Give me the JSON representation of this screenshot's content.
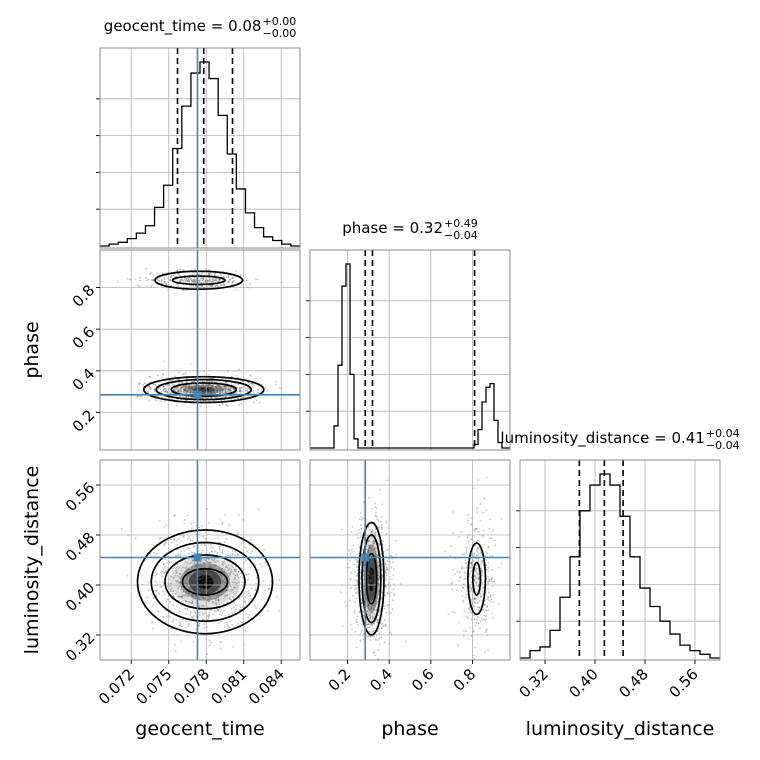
{
  "chart_data": {
    "type": "corner",
    "colors": {
      "line": "#000000",
      "truth": "#4682b4",
      "grid": "#b0b0b0",
      "frame": "#888888"
    },
    "parameters": [
      {
        "name": "geocent_time",
        "label": "geocent_time",
        "title": {
          "text": "geocent_time = 0.08",
          "upper": "+0.00",
          "lower": "−0.00"
        },
        "range": [
          0.0695,
          0.0855
        ],
        "ticks": [
          0.072,
          0.075,
          0.078,
          0.081,
          0.084
        ],
        "tick_labels": [
          "0.072",
          "0.075",
          "0.078",
          "0.081",
          "0.084"
        ],
        "truth": 0.0773,
        "quantiles": [
          0.0757,
          0.0778,
          0.0801
        ],
        "hist_counts": [
          0,
          1,
          2,
          4,
          7,
          11,
          21,
          33,
          53,
          76,
          94,
          100,
          91,
          71,
          50,
          31,
          18,
          10,
          5,
          3,
          1,
          0
        ],
        "hist_grid": [
          0.2,
          0.4,
          0.6,
          0.8
        ]
      },
      {
        "name": "phase",
        "label": "phase",
        "title": {
          "text": "phase = 0.32",
          "upper": "+0.49",
          "lower": "−0.04"
        },
        "range": [
          0.02,
          0.98
        ],
        "ticks": [
          0.2,
          0.4,
          0.6,
          0.8
        ],
        "tick_labels": [
          "0.2",
          "0.4",
          "0.6",
          "0.8"
        ],
        "truth": 0.285,
        "quantiles": [
          0.285,
          0.32,
          0.81
        ],
        "hist_counts": [
          0,
          0,
          0,
          0,
          0,
          0,
          12,
          45,
          88,
          100,
          40,
          5,
          0,
          0,
          0,
          0,
          0,
          0,
          0,
          0,
          0,
          0,
          0,
          0,
          0,
          0,
          0,
          0,
          0,
          0,
          0,
          0,
          0,
          0,
          0,
          0,
          0,
          0,
          0,
          0,
          0,
          2,
          10,
          25,
          33,
          35,
          15,
          3,
          0,
          0
        ],
        "hist_grid": [
          0.2,
          0.4,
          0.6,
          0.8
        ]
      },
      {
        "name": "luminosity_distance",
        "label": "luminosity_distance",
        "title": {
          "text": "luminosity_distance = 0.41",
          "upper": "+0.04",
          "lower": "−0.04"
        },
        "range": [
          0.28,
          0.6
        ],
        "ticks": [
          0.32,
          0.4,
          0.48,
          0.56
        ],
        "tick_labels": [
          "0.32",
          "0.40",
          "0.48",
          "0.56"
        ],
        "truth": 0.444,
        "quantiles": [
          0.375,
          0.415,
          0.445
        ],
        "hist_counts": [
          0,
          4,
          6,
          15,
          33,
          55,
          80,
          94,
          100,
          94,
          77,
          55,
          38,
          28,
          20,
          13,
          7,
          4,
          2,
          0
        ],
        "hist_grid": [
          0.2,
          0.4,
          0.6,
          0.8
        ]
      }
    ],
    "pairs": [
      {
        "x": "geocent_time",
        "y": "phase",
        "truth": [
          0.0773,
          0.285
        ],
        "blobs": [
          {
            "cx": 0.0778,
            "cy": 0.31,
            "sx": 0.0018,
            "sy": 0.028,
            "levels": [
              [
                0.0026,
                0.032
              ],
              [
                0.0038,
                0.048
              ],
              [
                0.0048,
                0.062
              ]
            ],
            "density": [
              [
                0.0025,
                0.03,
                0.12
              ],
              [
                0.0016,
                0.022,
                0.3
              ],
              [
                0.0009,
                0.014,
                0.55
              ],
              [
                0.0005,
                0.009,
                0.85
              ]
            ]
          },
          {
            "cx": 0.0774,
            "cy": 0.835,
            "sx": 0.0018,
            "sy": 0.02,
            "levels": [
              [
                0.0021,
                0.02
              ],
              [
                0.0035,
                0.043
              ]
            ],
            "density": [
              [
                0.0015,
                0.014,
                0.06
              ]
            ]
          }
        ]
      },
      {
        "x": "geocent_time",
        "y": "luminosity_distance",
        "truth": [
          0.0773,
          0.444
        ],
        "blobs": [
          {
            "cx": 0.0779,
            "cy": 0.405,
            "sx": 0.0018,
            "sy": 0.035,
            "levels": [
              [
                0.0018,
                0.021
              ],
              [
                0.0032,
                0.043
              ],
              [
                0.0043,
                0.063
              ],
              [
                0.0054,
                0.083
              ]
            ],
            "density": [
              [
                0.0028,
                0.04,
                0.12
              ],
              [
                0.002,
                0.03,
                0.3
              ],
              [
                0.0013,
                0.02,
                0.55
              ],
              [
                0.0007,
                0.011,
                0.9
              ]
            ]
          }
        ]
      },
      {
        "x": "phase",
        "y": "luminosity_distance",
        "truth": [
          0.285,
          0.444
        ],
        "blobs": [
          {
            "cx": 0.315,
            "cy": 0.41,
            "sx": 0.04,
            "sy": 0.04,
            "levels": [
              [
                0.025,
                0.04
              ],
              [
                0.045,
                0.07
              ],
              [
                0.06,
                0.09
              ]
            ],
            "density": [
              [
                0.05,
                0.075,
                0.12
              ],
              [
                0.035,
                0.055,
                0.3
              ],
              [
                0.022,
                0.035,
                0.55
              ],
              [
                0.013,
                0.02,
                0.9
              ]
            ]
          },
          {
            "cx": 0.82,
            "cy": 0.41,
            "sx": 0.04,
            "sy": 0.04,
            "levels": [
              [
                0.018,
                0.026
              ],
              [
                0.042,
                0.057
              ]
            ],
            "density": [
              [
                0.03,
                0.04,
                0.05
              ]
            ]
          }
        ]
      }
    ]
  }
}
